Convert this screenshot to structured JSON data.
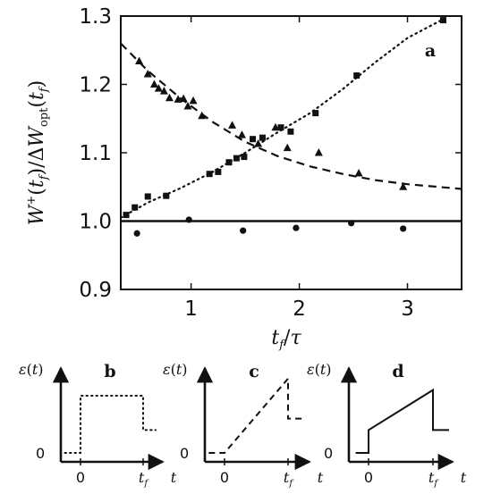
{
  "chart_data": [
    {
      "type": "scatter",
      "panel_label": "a",
      "ylabel": "W⁺(t_f)/ΔW_opt(t_f)",
      "xlabel": "t_f/τ",
      "xlim": [
        0.35,
        3.5
      ],
      "ylim": [
        0.9,
        1.3
      ],
      "xticks": [
        1,
        2,
        3
      ],
      "yticks": [
        0.9,
        1.0,
        1.1,
        1.2,
        1.3
      ],
      "ytick_labels": [
        "0.9",
        "1.0",
        "1.1",
        "1.2",
        "1.3"
      ],
      "grid": false,
      "series": [
        {
          "marker": "square",
          "x": [
            0.4,
            0.48,
            0.6,
            0.77,
            1.17,
            1.25,
            1.35,
            1.42,
            1.49,
            1.57,
            1.66,
            1.83,
            1.92,
            2.15,
            2.53,
            3.33
          ],
          "y": [
            1.009,
            1.02,
            1.036,
            1.037,
            1.069,
            1.072,
            1.086,
            1.092,
            1.094,
            1.12,
            1.122,
            1.137,
            1.131,
            1.158,
            1.213,
            1.294
          ]
        },
        {
          "marker": "triangle",
          "x": [
            0.52,
            0.6,
            0.66,
            0.7,
            0.75,
            0.8,
            0.88,
            0.93,
            0.97,
            1.02,
            1.1,
            1.38,
            1.47,
            1.62,
            1.78,
            1.89,
            2.18,
            2.55,
            2.96
          ],
          "y": [
            1.234,
            1.215,
            1.2,
            1.194,
            1.19,
            1.18,
            1.178,
            1.179,
            1.168,
            1.176,
            1.154,
            1.14,
            1.126,
            1.113,
            1.137,
            1.107,
            1.1,
            1.07,
            1.05
          ]
        },
        {
          "marker": "circle",
          "x": [
            0.5,
            0.98,
            1.48,
            1.97,
            2.48,
            2.96
          ],
          "y": [
            0.982,
            1.002,
            0.986,
            0.99,
            0.997,
            0.989
          ]
        },
        {
          "style": "dotted",
          "x": [
            0.35,
            0.6,
            0.9,
            1.2,
            1.5,
            1.8,
            2.1,
            2.4,
            2.7,
            3.0,
            3.3
          ],
          "y": [
            1.005,
            1.027,
            1.048,
            1.072,
            1.1,
            1.13,
            1.158,
            1.193,
            1.232,
            1.268,
            1.293
          ]
        },
        {
          "style": "dashed",
          "x": [
            0.35,
            0.6,
            0.9,
            1.2,
            1.5,
            1.8,
            2.1,
            2.4,
            2.7,
            3.0,
            3.5
          ],
          "y": [
            1.26,
            1.22,
            1.18,
            1.145,
            1.116,
            1.095,
            1.08,
            1.069,
            1.06,
            1.054,
            1.047
          ]
        },
        {
          "style": "solid",
          "x": [
            0.35,
            3.5
          ],
          "y": [
            1.0,
            1.0
          ]
        }
      ]
    },
    {
      "type": "line",
      "panel_label": "b",
      "ylabel": "ε(t)",
      "xlabel": "t",
      "x_tick_labels": [
        "0",
        "t_f"
      ],
      "y_tick_labels": [
        "0"
      ],
      "style": "dotted",
      "x": [
        -0.25,
        0,
        0,
        1,
        1,
        1.2
      ],
      "y": [
        0,
        0,
        1,
        1,
        0.4,
        0.4
      ]
    },
    {
      "type": "line",
      "panel_label": "c",
      "ylabel": "ε(t)",
      "xlabel": "t",
      "x_tick_labels": [
        "0",
        "t_f"
      ],
      "y_tick_labels": [
        "0"
      ],
      "style": "dashed",
      "x": [
        -0.25,
        0,
        1,
        1,
        1.25
      ],
      "y": [
        0,
        0,
        1.3,
        0.6,
        0.6
      ]
    },
    {
      "type": "line",
      "panel_label": "d",
      "ylabel": "ε(t)",
      "xlabel": "t",
      "x_tick_labels": [
        "0",
        "t_f"
      ],
      "y_tick_labels": [
        "0"
      ],
      "style": "solid",
      "x": [
        -0.2,
        0,
        0,
        1,
        1,
        1.25
      ],
      "y": [
        0,
        0,
        0.4,
        1.1,
        0.4,
        0.4
      ]
    }
  ]
}
